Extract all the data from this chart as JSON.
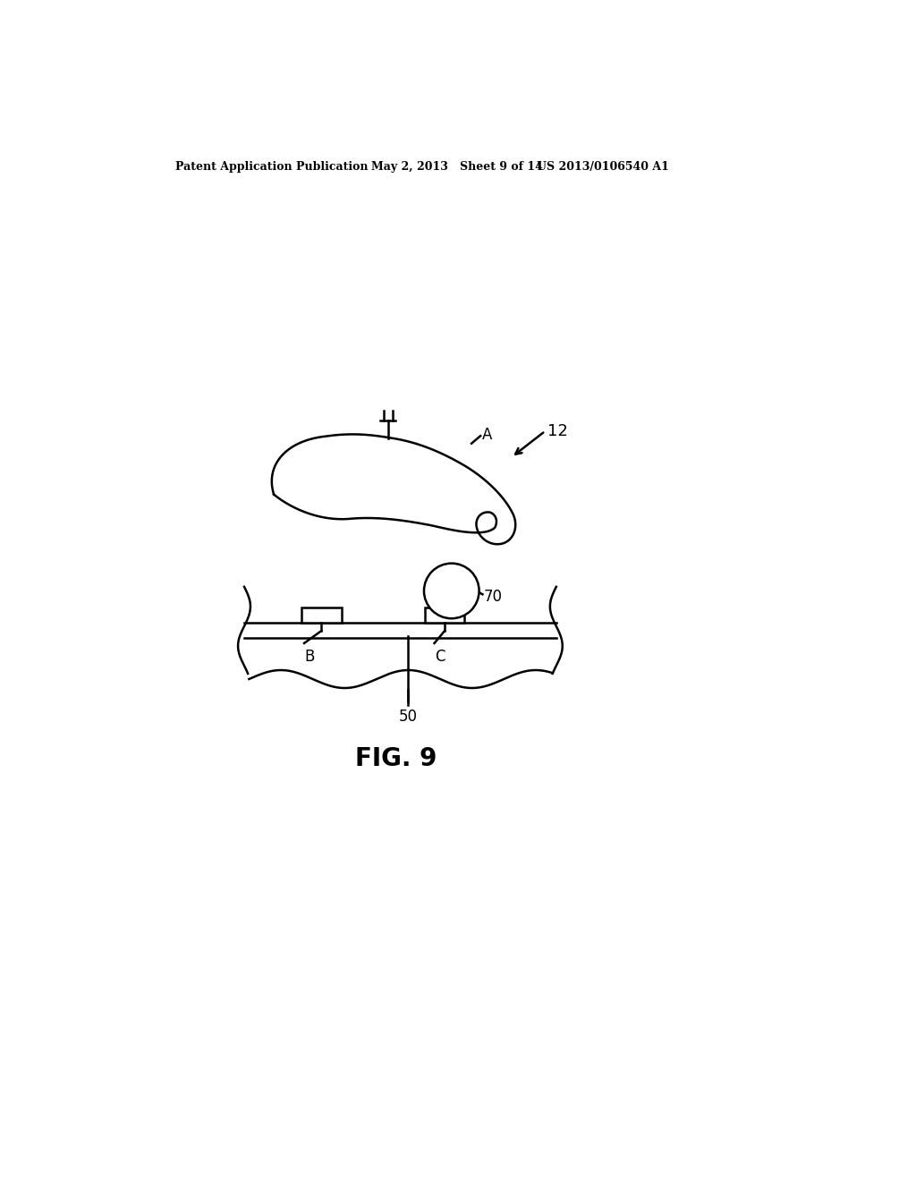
{
  "bg_color": "#ffffff",
  "line_color": "#000000",
  "header_left": "Patent Application Publication",
  "header_mid": "May 2, 2013   Sheet 9 of 14",
  "header_right": "US 2013/0106540 A1",
  "fig_label": "FIG. 9",
  "label_12": "12",
  "label_70": "70",
  "label_A": "A",
  "label_B": "B",
  "label_C": "C",
  "label_50": "50"
}
